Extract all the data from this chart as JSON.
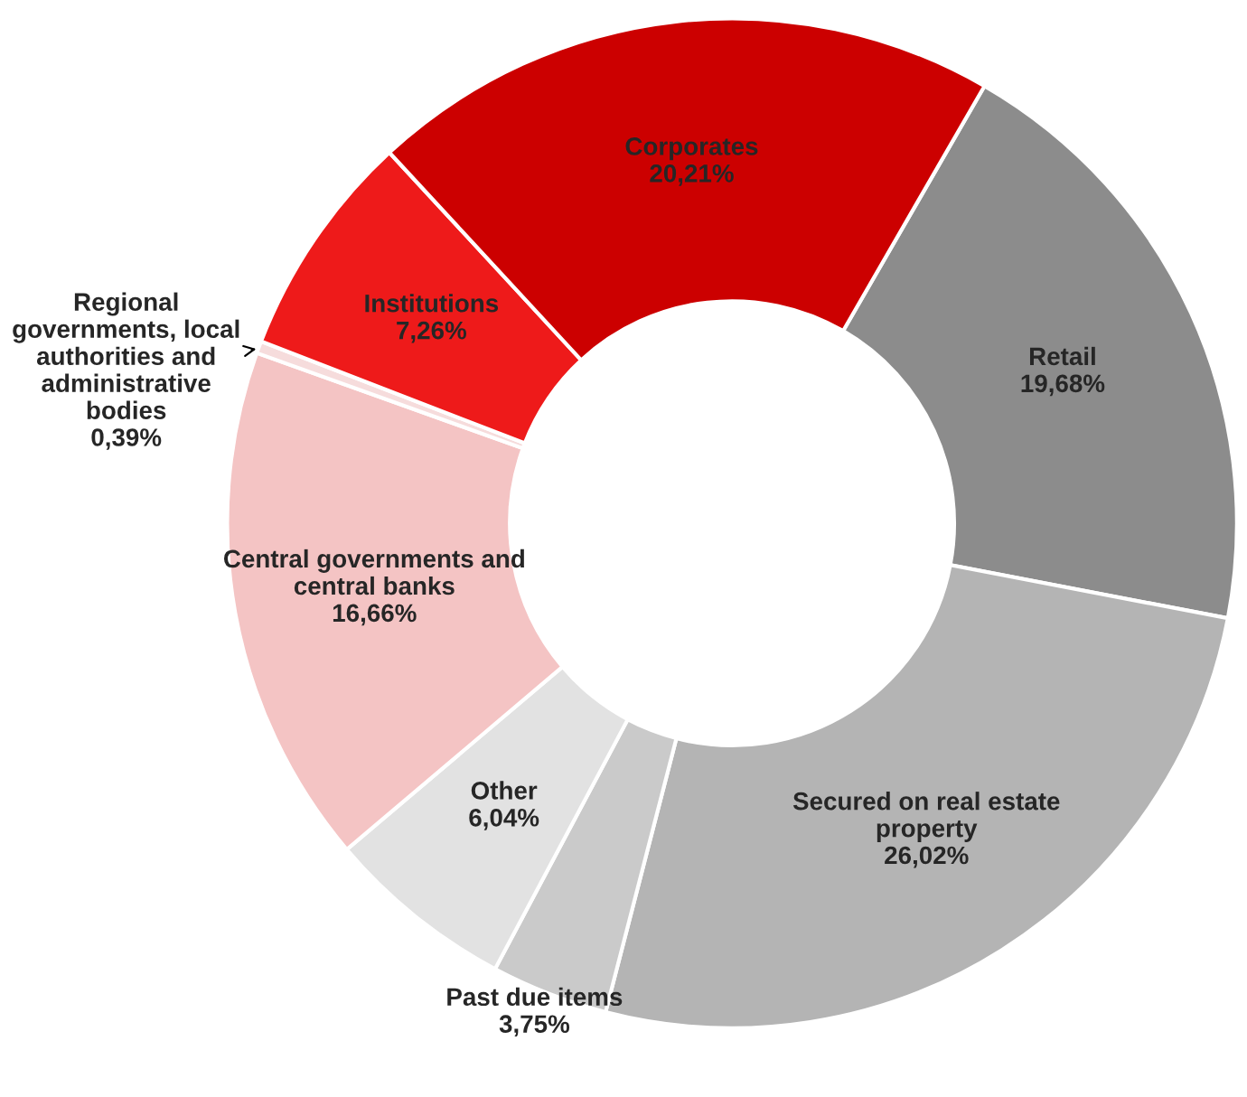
{
  "chart_data": {
    "type": "donut",
    "categories": [
      "Retail",
      "Secured on real estate property",
      "Past due items",
      "Other",
      "Central governments and central banks",
      "Regional governments, local authorities and administrative bodies",
      "Institutions",
      "Corporates"
    ],
    "values": [
      19.68,
      26.02,
      3.75,
      6.04,
      16.66,
      0.39,
      7.26,
      20.21
    ],
    "value_labels": [
      "19,68%",
      "26,02%",
      "3,75%",
      "6,04%",
      "16,66%",
      "0,39%",
      "7,26%",
      "20,21%"
    ],
    "colors": [
      "#8c8c8c",
      "#b4b4b4",
      "#cacaca",
      "#e2e2e2",
      "#f4c4c4",
      "#f6dcdc",
      "#ee1a1a",
      "#cc0000"
    ],
    "legend": false
  }
}
